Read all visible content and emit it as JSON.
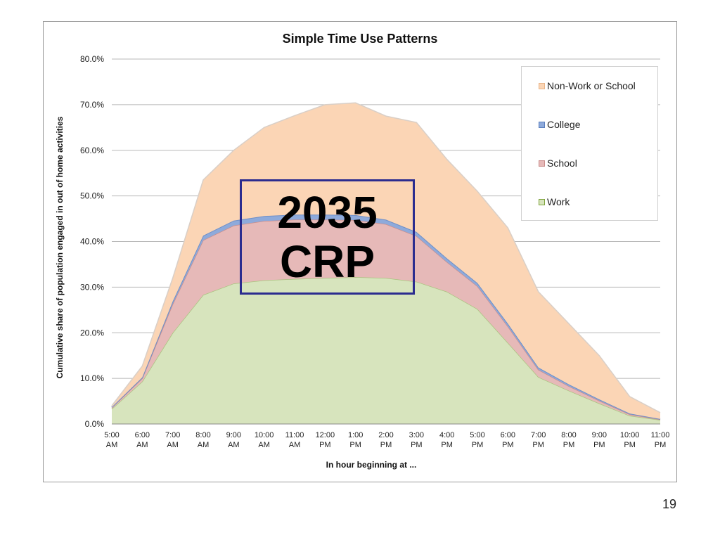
{
  "slide_number": "19",
  "overlay": {
    "line1": "2035",
    "line2": "CRP"
  },
  "chart_data": {
    "type": "area",
    "stacked": true,
    "title": "Simple Time Use Patterns",
    "xlabel": "In hour beginning at ...",
    "ylabel": "Cumulative share of population engaged in out of home activities",
    "ylim": [
      0,
      80
    ],
    "yticks": [
      "0.0%",
      "10.0%",
      "20.0%",
      "30.0%",
      "40.0%",
      "50.0%",
      "60.0%",
      "70.0%",
      "80.0%"
    ],
    "grid": true,
    "legend_position": "top-right",
    "categories": [
      [
        "5:00",
        "AM"
      ],
      [
        "6:00",
        "AM"
      ],
      [
        "7:00",
        "AM"
      ],
      [
        "8:00",
        "AM"
      ],
      [
        "9:00",
        "AM"
      ],
      [
        "10:00",
        "AM"
      ],
      [
        "11:00",
        "AM"
      ],
      [
        "12:00",
        "PM"
      ],
      [
        "1:00",
        "PM"
      ],
      [
        "2:00",
        "PM"
      ],
      [
        "3:00",
        "PM"
      ],
      [
        "4:00",
        "PM"
      ],
      [
        "5:00",
        "PM"
      ],
      [
        "6:00",
        "PM"
      ],
      [
        "7:00",
        "PM"
      ],
      [
        "8:00",
        "PM"
      ],
      [
        "9:00",
        "PM"
      ],
      [
        "10:00",
        "PM"
      ],
      [
        "11:00",
        "PM"
      ]
    ],
    "series": [
      {
        "name": "Work",
        "color": "#d7e4bd",
        "line": "#a9c47f",
        "values": [
          3.3,
          9.3,
          20.0,
          28.3,
          30.8,
          31.5,
          31.8,
          32.0,
          32.2,
          32.0,
          31.2,
          29.0,
          25.2,
          17.8,
          10.3,
          7.3,
          4.5,
          1.8,
          0.9
        ]
      },
      {
        "name": "School",
        "color": "#e6b9b8",
        "line": "#c98e8c",
        "values": [
          0.3,
          0.7,
          6.3,
          12.0,
          12.7,
          13.0,
          13.0,
          12.8,
          12.5,
          11.8,
          10.0,
          6.5,
          5.0,
          3.6,
          1.6,
          1.0,
          0.6,
          0.3,
          0.1
        ]
      },
      {
        "name": "College",
        "color": "#8eaadb",
        "line": "#6f8fc7",
        "values": [
          0.1,
          0.2,
          0.6,
          1.0,
          1.1,
          1.1,
          1.1,
          1.1,
          1.1,
          1.0,
          0.9,
          0.8,
          0.7,
          0.6,
          0.5,
          0.4,
          0.3,
          0.2,
          0.1
        ]
      },
      {
        "name": "Non-Work or School",
        "color": "#fbd5b5",
        "line": "#d9cfc7",
        "values": [
          0.3,
          2.5,
          5.1,
          12.2,
          15.4,
          19.4,
          21.7,
          24.1,
          24.6,
          22.7,
          24.0,
          21.7,
          20.1,
          21.0,
          16.6,
          13.3,
          9.6,
          3.7,
          1.4
        ]
      }
    ],
    "legend_order": [
      "Non-Work or School",
      "College",
      "School",
      "Work"
    ]
  }
}
